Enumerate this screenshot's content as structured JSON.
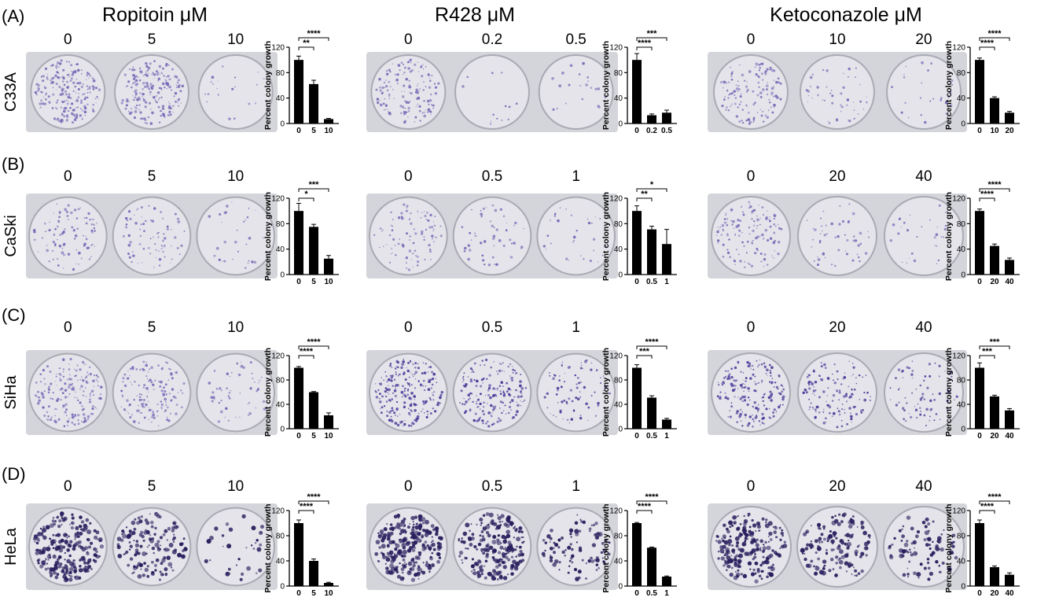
{
  "drug_titles": [
    "Ropitoin μM",
    "R428 μM",
    "Ketoconazole μM"
  ],
  "colors": {
    "bar": "#000000",
    "plate_bg": "#dcdde2",
    "colony_light": "#7a6ab8",
    "colony_dark": "#2a1f5e"
  },
  "rows": [
    {
      "panel": "(A)",
      "cell_line": "C33A",
      "groups": [
        {
          "doses": [
            "0",
            "5",
            "10"
          ],
          "colony_density": [
            0.85,
            0.8,
            0.08
          ],
          "colony_darkness": "light"
        },
        {
          "doses": [
            "0",
            "0.2",
            "0.5"
          ],
          "colony_density": [
            0.55,
            0.05,
            0.08
          ],
          "colony_darkness": "light"
        },
        {
          "doses": [
            "0",
            "10",
            "20"
          ],
          "colony_density": [
            0.5,
            0.18,
            0.1
          ],
          "colony_darkness": "light"
        }
      ]
    },
    {
      "panel": "(B)",
      "cell_line": "CaSki",
      "groups": [
        {
          "doses": [
            "0",
            "5",
            "10"
          ],
          "colony_density": [
            0.35,
            0.3,
            0.12
          ],
          "colony_darkness": "light"
        },
        {
          "doses": [
            "0",
            "0.5",
            "1"
          ],
          "colony_density": [
            0.35,
            0.2,
            0.12
          ],
          "colony_darkness": "light"
        },
        {
          "doses": [
            "0",
            "20",
            "40"
          ],
          "colony_density": [
            0.5,
            0.2,
            0.12
          ],
          "colony_darkness": "light"
        }
      ]
    },
    {
      "panel": "(C)",
      "cell_line": "SiHa",
      "groups": [
        {
          "doses": [
            "0",
            "5",
            "10"
          ],
          "colony_density": [
            0.7,
            0.55,
            0.2
          ],
          "colony_darkness": "light"
        },
        {
          "doses": [
            "0",
            "0.5",
            "1"
          ],
          "colony_density": [
            0.85,
            0.7,
            0.3
          ],
          "colony_darkness": "medium"
        },
        {
          "doses": [
            "0",
            "20",
            "40"
          ],
          "colony_density": [
            0.75,
            0.5,
            0.3
          ],
          "colony_darkness": "medium"
        }
      ]
    },
    {
      "panel": "(D)",
      "cell_line": "HeLa",
      "groups": [
        {
          "doses": [
            "0",
            "5",
            "10"
          ],
          "colony_density": [
            0.9,
            0.55,
            0.12
          ],
          "colony_darkness": "dark"
        },
        {
          "doses": [
            "0",
            "0.5",
            "1"
          ],
          "colony_density": [
            0.95,
            0.8,
            0.35
          ],
          "colony_darkness": "dark"
        },
        {
          "doses": [
            "0",
            "20",
            "40"
          ],
          "colony_density": [
            0.85,
            0.55,
            0.35
          ],
          "colony_darkness": "dark"
        }
      ]
    }
  ],
  "chart_data": [
    {
      "type": "bar",
      "cell_line": "C33A",
      "drug": "Ropitoin",
      "categories": [
        "0",
        "5",
        "10"
      ],
      "values": [
        100,
        62,
        7
      ],
      "errors": [
        6,
        6,
        1
      ],
      "ylabel": "Percent colony growth",
      "ylim": [
        0,
        120
      ],
      "yticks": [
        "0",
        "40",
        "80",
        "120"
      ],
      "significance": [
        {
          "from": 0,
          "to": 1,
          "label": "**"
        },
        {
          "from": 0,
          "to": 2,
          "label": "****"
        }
      ]
    },
    {
      "type": "bar",
      "cell_line": "C33A",
      "drug": "R428",
      "categories": [
        "0",
        "0.2",
        "0.5"
      ],
      "values": [
        100,
        13,
        17
      ],
      "errors": [
        10,
        2,
        4
      ],
      "ylabel": "Percent colony growth",
      "ylim": [
        0,
        120
      ],
      "yticks": [
        "0",
        "40",
        "80",
        "120"
      ],
      "significance": [
        {
          "from": 0,
          "to": 1,
          "label": "****"
        },
        {
          "from": 0,
          "to": 2,
          "label": "***"
        }
      ]
    },
    {
      "type": "bar",
      "cell_line": "C33A",
      "drug": "Ketoconazole",
      "categories": [
        "0",
        "10",
        "20"
      ],
      "values": [
        100,
        40,
        17
      ],
      "errors": [
        3,
        2,
        2
      ],
      "ylabel": "Percent colony growth",
      "ylim": [
        0,
        120
      ],
      "yticks": [
        "0",
        "40",
        "80",
        "120"
      ],
      "significance": [
        {
          "from": 0,
          "to": 1,
          "label": "****"
        },
        {
          "from": 0,
          "to": 2,
          "label": "****"
        }
      ]
    },
    {
      "type": "bar",
      "cell_line": "CaSki",
      "drug": "Ropitoin",
      "categories": [
        "0",
        "5",
        "10"
      ],
      "values": [
        100,
        75,
        25
      ],
      "errors": [
        12,
        4,
        5
      ],
      "ylabel": "Percent colony growth",
      "ylim": [
        0,
        120
      ],
      "yticks": [
        "0",
        "40",
        "80",
        "120"
      ],
      "significance": [
        {
          "from": 0,
          "to": 1,
          "label": "*"
        },
        {
          "from": 0,
          "to": 2,
          "label": "***"
        }
      ]
    },
    {
      "type": "bar",
      "cell_line": "CaSki",
      "drug": "R428",
      "categories": [
        "0",
        "0.5",
        "1"
      ],
      "values": [
        100,
        71,
        48
      ],
      "errors": [
        8,
        5,
        23
      ],
      "ylabel": "Percent colony growth",
      "ylim": [
        0,
        120
      ],
      "yticks": [
        "0",
        "40",
        "80",
        "120"
      ],
      "significance": [
        {
          "from": 0,
          "to": 1,
          "label": "**"
        },
        {
          "from": 0,
          "to": 2,
          "label": "*"
        }
      ]
    },
    {
      "type": "bar",
      "cell_line": "CaSki",
      "drug": "Ketoconazole",
      "categories": [
        "0",
        "20",
        "40"
      ],
      "values": [
        100,
        45,
        23
      ],
      "errors": [
        3,
        3,
        3
      ],
      "ylabel": "Percent colony growth",
      "ylim": [
        0,
        120
      ],
      "yticks": [
        "0",
        "40",
        "80",
        "120"
      ],
      "significance": [
        {
          "from": 0,
          "to": 1,
          "label": "****"
        },
        {
          "from": 0,
          "to": 2,
          "label": "****"
        }
      ]
    },
    {
      "type": "bar",
      "cell_line": "SiHa",
      "drug": "Ropitoin",
      "categories": [
        "0",
        "5",
        "10"
      ],
      "values": [
        100,
        60,
        22
      ],
      "errors": [
        2,
        1,
        4
      ],
      "ylabel": "Percent colony growth",
      "ylim": [
        0,
        120
      ],
      "yticks": [
        "0",
        "40",
        "80",
        "120"
      ],
      "significance": [
        {
          "from": 0,
          "to": 1,
          "label": "****"
        },
        {
          "from": 0,
          "to": 2,
          "label": "****"
        }
      ]
    },
    {
      "type": "bar",
      "cell_line": "SiHa",
      "drug": "R428",
      "categories": [
        "0",
        "0.5",
        "1"
      ],
      "values": [
        100,
        51,
        15
      ],
      "errors": [
        5,
        3,
        2
      ],
      "ylabel": "Percent colony growth",
      "ylim": [
        0,
        120
      ],
      "yticks": [
        "0",
        "40",
        "80",
        "120"
      ],
      "significance": [
        {
          "from": 0,
          "to": 1,
          "label": "***"
        },
        {
          "from": 0,
          "to": 2,
          "label": "****"
        }
      ]
    },
    {
      "type": "bar",
      "cell_line": "SiHa",
      "drug": "Ketoconazole",
      "categories": [
        "0",
        "20",
        "40"
      ],
      "values": [
        100,
        53,
        30
      ],
      "errors": [
        8,
        2,
        3
      ],
      "ylabel": "Percent colony growth",
      "ylim": [
        0,
        120
      ],
      "yticks": [
        "0",
        "40",
        "80",
        "120"
      ],
      "significance": [
        {
          "from": 0,
          "to": 1,
          "label": "***"
        },
        {
          "from": 0,
          "to": 2,
          "label": "***"
        }
      ]
    },
    {
      "type": "bar",
      "cell_line": "HeLa",
      "drug": "Ropitoin",
      "categories": [
        "0",
        "5",
        "10"
      ],
      "values": [
        100,
        40,
        5
      ],
      "errors": [
        5,
        3,
        1
      ],
      "ylabel": "Percent colony growth",
      "ylim": [
        0,
        120
      ],
      "yticks": [
        "0",
        "40",
        "80",
        "120"
      ],
      "significance": [
        {
          "from": 0,
          "to": 1,
          "label": "****"
        },
        {
          "from": 0,
          "to": 2,
          "label": "****"
        }
      ]
    },
    {
      "type": "bar",
      "cell_line": "HeLa",
      "drug": "R428",
      "categories": [
        "0",
        "0.5",
        "1"
      ],
      "values": [
        100,
        61,
        15
      ],
      "errors": [
        1,
        1,
        1
      ],
      "ylabel": "Percent colony growth",
      "ylim": [
        0,
        120
      ],
      "yticks": [
        "0",
        "40",
        "80",
        "120"
      ],
      "significance": [
        {
          "from": 0,
          "to": 1,
          "label": "****"
        },
        {
          "from": 0,
          "to": 2,
          "label": "****"
        }
      ]
    },
    {
      "type": "bar",
      "cell_line": "HeLa",
      "drug": "Ketoconazole",
      "categories": [
        "0",
        "20",
        "40"
      ],
      "values": [
        100,
        30,
        18
      ],
      "errors": [
        5,
        2,
        3
      ],
      "ylabel": "Percent colony growth",
      "ylim": [
        0,
        120
      ],
      "yticks": [
        "0",
        "40",
        "80",
        "120"
      ],
      "significance": [
        {
          "from": 0,
          "to": 1,
          "label": "****"
        },
        {
          "from": 0,
          "to": 2,
          "label": "****"
        }
      ]
    }
  ]
}
